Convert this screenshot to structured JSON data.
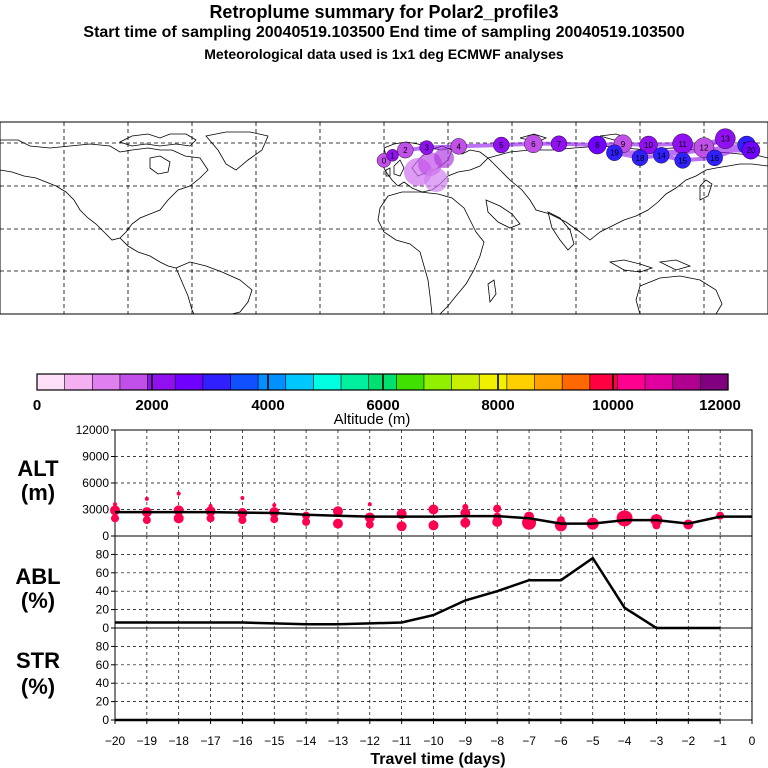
{
  "header": {
    "title": "Retroplume summary for Polar2_profile3",
    "sampling_line": "Start time of sampling 20040519.103500     End time of sampling 20040519.103500",
    "met_line": "Meteorological data used is 1x1 deg ECMWF analyses"
  },
  "colorbar": {
    "colors": [
      "#fde0f8",
      "#f4b0f0",
      "#e080f0",
      "#c050e8",
      "#9010f0",
      "#7000ff",
      "#3020ff",
      "#1050ff",
      "#0090ff",
      "#00c8ff",
      "#00ffe0",
      "#00f0a0",
      "#00e070",
      "#40e000",
      "#90f000",
      "#c8f000",
      "#f0f000",
      "#ffd000",
      "#ffa000",
      "#ff6800",
      "#ff0040",
      "#ff0090",
      "#e000a0",
      "#b00090",
      "#800080"
    ],
    "tick_labels": [
      "0",
      "2000",
      "4000",
      "6000",
      "8000",
      "10000",
      "12000"
    ],
    "label": "Altitude (m)"
  },
  "map": {
    "plume_points": [
      {
        "lon": 0,
        "lat": 60,
        "label": "0",
        "color": "#c050e8",
        "size": 7
      },
      {
        "lon": 4,
        "lat": 64,
        "label": "1",
        "color": "#9010f0",
        "size": 6
      },
      {
        "lon": 10,
        "lat": 68,
        "label": "2",
        "color": "#c050e8",
        "size": 8
      },
      {
        "lon": 20,
        "lat": 70,
        "label": "3",
        "color": "#9010f0",
        "size": 7
      },
      {
        "lon": 35,
        "lat": 71,
        "label": "4",
        "color": "#c050e8",
        "size": 8
      },
      {
        "lon": 55,
        "lat": 72,
        "label": "5",
        "color": "#9010f0",
        "size": 8
      },
      {
        "lon": 70,
        "lat": 73,
        "label": "6",
        "color": "#c050e8",
        "size": 9
      },
      {
        "lon": 82,
        "lat": 73,
        "label": "7",
        "color": "#9010f0",
        "size": 8
      },
      {
        "lon": 100,
        "lat": 72,
        "label": "8",
        "color": "#7000ff",
        "size": 9
      },
      {
        "lon": 112,
        "lat": 73,
        "label": "9",
        "color": "#c050e8",
        "size": 9
      },
      {
        "lon": 124,
        "lat": 72,
        "label": "10",
        "color": "#9010f0",
        "size": 9
      },
      {
        "lon": 140,
        "lat": 73,
        "label": "11",
        "color": "#9010f0",
        "size": 10
      },
      {
        "lon": 150,
        "lat": 70,
        "label": "12",
        "color": "#c050e8",
        "size": 10
      },
      {
        "lon": 160,
        "lat": 77,
        "label": "13",
        "color": "#9010f0",
        "size": 10
      },
      {
        "lon": 130,
        "lat": 64,
        "label": "14",
        "color": "#3020ff",
        "size": 8
      },
      {
        "lon": 140,
        "lat": 60,
        "label": "15",
        "color": "#3020ff",
        "size": 8
      },
      {
        "lon": 155,
        "lat": 62,
        "label": "16",
        "color": "#3020ff",
        "size": 8
      },
      {
        "lon": 170,
        "lat": 72,
        "label": "17",
        "color": "#3020ff",
        "size": 9
      },
      {
        "lon": 120,
        "lat": 62,
        "label": "18",
        "color": "#3020ff",
        "size": 8
      },
      {
        "lon": 108,
        "lat": 66,
        "label": "19",
        "color": "#3020ff",
        "size": 8
      },
      {
        "lon": 172,
        "lat": 68,
        "label": "20",
        "color": "#7000ff",
        "size": 9
      }
    ]
  },
  "chart_data": [
    {
      "type": "line",
      "panel": "ALT",
      "ylabel": "ALT (m)",
      "ylim": [
        0,
        12000
      ],
      "yticks": [
        "12000",
        "9000",
        "6000",
        "3000",
        "0"
      ],
      "x": [
        -20,
        -19,
        -18,
        -17,
        -16,
        -15,
        -14,
        -13,
        -12,
        -11,
        -10,
        -9,
        -8,
        -7,
        -6,
        -5,
        -4,
        -3,
        -2,
        -1,
        0
      ],
      "values": [
        2700,
        2700,
        2700,
        2700,
        2650,
        2600,
        2400,
        2300,
        2200,
        2200,
        2200,
        2250,
        2250,
        2000,
        1400,
        1400,
        1800,
        1800,
        1400,
        2200,
        2200
      ],
      "scatter": [
        {
          "x": -20,
          "y": 2900,
          "r": 5
        },
        {
          "x": -20,
          "y": 2000,
          "r": 4
        },
        {
          "x": -20,
          "y": 3600,
          "r": 2
        },
        {
          "x": -19,
          "y": 2700,
          "r": 5
        },
        {
          "x": -19,
          "y": 1800,
          "r": 4
        },
        {
          "x": -19,
          "y": 4200,
          "r": 2
        },
        {
          "x": -18,
          "y": 2900,
          "r": 5
        },
        {
          "x": -18,
          "y": 2000,
          "r": 5
        },
        {
          "x": -18,
          "y": 4800,
          "r": 2
        },
        {
          "x": -17,
          "y": 2800,
          "r": 5
        },
        {
          "x": -17,
          "y": 2000,
          "r": 4
        },
        {
          "x": -17,
          "y": 3400,
          "r": 2
        },
        {
          "x": -16,
          "y": 2600,
          "r": 5
        },
        {
          "x": -16,
          "y": 1800,
          "r": 4
        },
        {
          "x": -16,
          "y": 4300,
          "r": 2
        },
        {
          "x": -15,
          "y": 2700,
          "r": 5
        },
        {
          "x": -15,
          "y": 1900,
          "r": 4
        },
        {
          "x": -15,
          "y": 3500,
          "r": 2
        },
        {
          "x": -14,
          "y": 2300,
          "r": 4
        },
        {
          "x": -14,
          "y": 1600,
          "r": 4
        },
        {
          "x": -13,
          "y": 2800,
          "r": 5
        },
        {
          "x": -13,
          "y": 1400,
          "r": 5
        },
        {
          "x": -12,
          "y": 2100,
          "r": 5
        },
        {
          "x": -12,
          "y": 1300,
          "r": 4
        },
        {
          "x": -12,
          "y": 3600,
          "r": 2
        },
        {
          "x": -11,
          "y": 2500,
          "r": 5
        },
        {
          "x": -11,
          "y": 1100,
          "r": 5
        },
        {
          "x": -10,
          "y": 3000,
          "r": 5
        },
        {
          "x": -10,
          "y": 1200,
          "r": 5
        },
        {
          "x": -9,
          "y": 2600,
          "r": 5
        },
        {
          "x": -9,
          "y": 1500,
          "r": 5
        },
        {
          "x": -9,
          "y": 3300,
          "r": 3
        },
        {
          "x": -8,
          "y": 3100,
          "r": 4
        },
        {
          "x": -8,
          "y": 1600,
          "r": 5
        },
        {
          "x": -8,
          "y": 2200,
          "r": 4
        },
        {
          "x": -7,
          "y": 1500,
          "r": 7
        },
        {
          "x": -7,
          "y": 2200,
          "r": 5
        },
        {
          "x": -6,
          "y": 1200,
          "r": 6
        },
        {
          "x": -6,
          "y": 1800,
          "r": 4
        },
        {
          "x": -5,
          "y": 1400,
          "r": 6
        },
        {
          "x": -4,
          "y": 2000,
          "r": 8
        },
        {
          "x": -3,
          "y": 1800,
          "r": 6
        },
        {
          "x": -3,
          "y": 1200,
          "r": 4
        },
        {
          "x": -2,
          "y": 1300,
          "r": 5
        },
        {
          "x": -1,
          "y": 2300,
          "r": 4
        }
      ]
    },
    {
      "type": "line",
      "panel": "ABL",
      "ylabel": "ABL (%)",
      "ylim": [
        0,
        100
      ],
      "yticks": [
        "80",
        "60",
        "40",
        "20",
        "0"
      ],
      "x": [
        -20,
        -19,
        -18,
        -17,
        -16,
        -15,
        -14,
        -13,
        -12,
        -11,
        -10,
        -9,
        -8,
        -7,
        -6,
        -5,
        -4,
        -3,
        -2,
        -1
      ],
      "values": [
        6,
        6,
        6,
        6,
        6,
        5,
        4,
        4,
        5,
        6,
        14,
        30,
        40,
        52,
        52,
        76,
        22,
        0,
        0,
        0
      ]
    },
    {
      "type": "line",
      "panel": "STR",
      "ylabel": "STR (%)",
      "ylim": [
        0,
        100
      ],
      "yticks": [
        "80",
        "60",
        "40",
        "20",
        "0"
      ],
      "x": [
        -20,
        -19,
        -18,
        -17,
        -16,
        -15,
        -14,
        -13,
        -12,
        -11,
        -10,
        -9,
        -8,
        -7,
        -6,
        -5,
        -4,
        -3,
        -2,
        -1
      ],
      "values": [
        0,
        0,
        0,
        0,
        0,
        0,
        0,
        0,
        0,
        0,
        0,
        0,
        0,
        0,
        0,
        0,
        0,
        0,
        0,
        0
      ]
    }
  ],
  "xaxis": {
    "tick_labels": [
      "−20",
      "−19",
      "−18",
      "−17",
      "−16",
      "−15",
      "−14",
      "−13",
      "−12",
      "−11",
      "−10",
      "−9",
      "−8",
      "−7",
      "−6",
      "−5",
      "−4",
      "−3",
      "−2",
      "−1",
      "0"
    ],
    "label": "Travel time (days)"
  },
  "panel_labels": {
    "alt_top": "ALT",
    "alt_bottom": "(m)",
    "abl_top": "ABL",
    "abl_bottom": "(%)",
    "str_top": "STR",
    "str_bottom": "(%)"
  }
}
